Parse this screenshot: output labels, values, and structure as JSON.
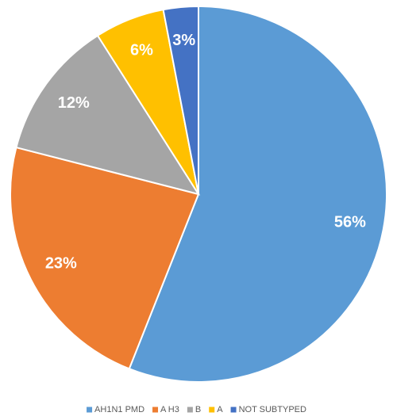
{
  "chart_data": {
    "type": "pie",
    "categories": [
      "AH1N1 PMD",
      "A H3",
      "B",
      "A",
      "NOT SUBTYPED"
    ],
    "values": [
      56,
      23,
      12,
      6,
      3
    ],
    "value_labels": [
      "56%",
      "23%",
      "12%",
      "6%",
      "3%"
    ],
    "colors": [
      "#5b9bd5",
      "#ed7d31",
      "#a5a5a5",
      "#ffc000",
      "#4472c4"
    ],
    "legend": "bottom"
  }
}
